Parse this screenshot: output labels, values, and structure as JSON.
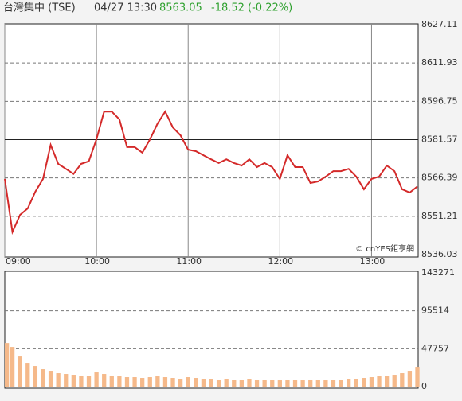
{
  "header": {
    "name": "台灣集中 (TSE)",
    "time": "04/27 13:30",
    "price": "8563.05",
    "change": "-18.52 (-0.22%)"
  },
  "chart_data": [
    {
      "type": "line",
      "color": "#d42a2a",
      "watermark": "© cnYES鉅亨網",
      "x": [
        "09:00",
        "09:05",
        "09:10",
        "09:15",
        "09:20",
        "09:25",
        "09:30",
        "09:35",
        "09:40",
        "09:45",
        "09:50",
        "09:55",
        "10:00",
        "10:05",
        "10:10",
        "10:15",
        "10:20",
        "10:25",
        "10:30",
        "10:35",
        "10:40",
        "10:45",
        "10:50",
        "10:55",
        "11:00",
        "11:05",
        "11:10",
        "11:15",
        "11:20",
        "11:25",
        "11:30",
        "11:35",
        "11:40",
        "11:45",
        "11:50",
        "11:55",
        "12:00",
        "12:05",
        "12:10",
        "12:15",
        "12:20",
        "12:25",
        "12:30",
        "12:35",
        "12:40",
        "12:45",
        "12:50",
        "12:55",
        "13:00",
        "13:05",
        "13:10",
        "13:15",
        "13:20",
        "13:25",
        "13:30"
      ],
      "values": [
        8566,
        8545,
        8551.8,
        8554.3,
        8561,
        8566,
        8579.5,
        8572,
        8570,
        8568,
        8572,
        8573,
        8581.7,
        8592.7,
        8592.7,
        8589.6,
        8578.6,
        8578.6,
        8576.4,
        8581.7,
        8588,
        8592.7,
        8586.4,
        8583.3,
        8577.6,
        8577,
        8575.4,
        8573.8,
        8572.3,
        8573.8,
        8572.3,
        8571.3,
        8573.8,
        8570.7,
        8572.3,
        8570.7,
        8566,
        8575.4,
        8570.7,
        8570.7,
        8564.4,
        8565,
        8566.9,
        8569.1,
        8569.1,
        8570,
        8566.9,
        8561.9,
        8566,
        8566.9,
        8571.3,
        8569.1,
        8561.9,
        8560.6,
        8563
      ],
      "xlim": [
        "09:00",
        "13:30"
      ],
      "xticks": [
        "09:00",
        "10:00",
        "11:00",
        "12:00",
        "13:00"
      ],
      "ylim": [
        8536.03,
        8627.11
      ],
      "yticks": [
        8536.03,
        8551.21,
        8566.39,
        8581.57,
        8596.75,
        8611.93,
        8627.11
      ],
      "reference": 8581.57,
      "grid": "dashed"
    },
    {
      "type": "bar",
      "color": "#f5b98a",
      "x": [
        "09:00",
        "09:05",
        "09:10",
        "09:15",
        "09:20",
        "09:25",
        "09:30",
        "09:35",
        "09:40",
        "09:45",
        "09:50",
        "09:55",
        "10:00",
        "10:05",
        "10:10",
        "10:15",
        "10:20",
        "10:25",
        "10:30",
        "10:35",
        "10:40",
        "10:45",
        "10:50",
        "10:55",
        "11:00",
        "11:05",
        "11:10",
        "11:15",
        "11:20",
        "11:25",
        "11:30",
        "11:35",
        "11:40",
        "11:45",
        "11:50",
        "11:55",
        "12:00",
        "12:05",
        "12:10",
        "12:15",
        "12:20",
        "12:25",
        "12:30",
        "12:35",
        "12:40",
        "12:45",
        "12:50",
        "12:55",
        "13:00",
        "13:05",
        "13:10",
        "13:15",
        "13:20",
        "13:25",
        "13:30"
      ],
      "values": [
        55000,
        50000,
        38000,
        30000,
        26000,
        22000,
        20000,
        17000,
        16000,
        15000,
        14000,
        14000,
        18000,
        16000,
        14000,
        13000,
        12000,
        12000,
        11000,
        12000,
        13000,
        12000,
        11000,
        10000,
        12000,
        11000,
        10000,
        10000,
        9000,
        10000,
        9000,
        9000,
        10000,
        9000,
        9000,
        9000,
        8000,
        9000,
        9000,
        8000,
        9000,
        9000,
        8000,
        9000,
        9000,
        10000,
        10000,
        11000,
        12000,
        13000,
        14000,
        15000,
        17000,
        20000,
        25000
      ],
      "xlim": [
        "09:00",
        "13:30"
      ],
      "ylim": [
        0,
        143271
      ],
      "yticks": [
        0,
        47757,
        95514,
        143271
      ],
      "grid": "dashed"
    }
  ]
}
